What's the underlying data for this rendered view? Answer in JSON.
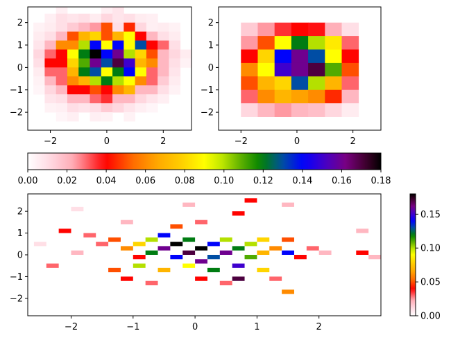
{
  "chart_data": [
    {
      "type": "heatmap",
      "title": "",
      "xlabel": "",
      "ylabel": "",
      "xlim": [
        -2.8,
        3.0
      ],
      "ylim": [
        -2.8,
        2.7
      ],
      "x_ticks": [
        -2,
        0,
        2
      ],
      "y_ticks": [
        -2,
        -1,
        0,
        1,
        2
      ],
      "x_edges": [
        -2.6,
        -2.2,
        -1.8,
        -1.4,
        -1.0,
        -0.6,
        -0.2,
        0.2,
        0.6,
        1.0,
        1.4,
        1.8,
        2.2,
        2.6,
        3.0
      ],
      "y_edges": [
        -2.8,
        -2.4,
        -2.0,
        -1.6,
        -1.2,
        -0.8,
        -0.4,
        0.0,
        0.4,
        0.8,
        1.2,
        1.6,
        2.0,
        2.4,
        2.8
      ],
      "colormap": "gist_ncar_r",
      "values_rows_top_to_bottom": [
        [
          0,
          0,
          0.005,
          0,
          0,
          0,
          0.005,
          0.008,
          0,
          0,
          0,
          0,
          0,
          0
        ],
        [
          0,
          0.005,
          0.01,
          0.008,
          0.01,
          0.006,
          0.012,
          0.008,
          0.01,
          0.006,
          0.005,
          0,
          0,
          0
        ],
        [
          0.004,
          0.006,
          0.01,
          0.015,
          0.02,
          0.025,
          0.05,
          0.01,
          0.045,
          0.012,
          0.005,
          0.006,
          0.004,
          0
        ],
        [
          0.006,
          0.01,
          0.02,
          0.05,
          0.07,
          0.08,
          0.05,
          0.07,
          0.09,
          0.04,
          0.02,
          0.01,
          0.006,
          0
        ],
        [
          0.008,
          0.02,
          0.06,
          0.06,
          0.1,
          0.14,
          0.09,
          0.14,
          0.09,
          0.13,
          0.04,
          0.03,
          0.01,
          0
        ],
        [
          0.012,
          0.03,
          0.04,
          0.09,
          0.12,
          0.18,
          0.14,
          0.16,
          0.1,
          0.08,
          0.05,
          0.02,
          0.012,
          0.006
        ],
        [
          0.01,
          0.04,
          0.04,
          0.08,
          0.11,
          0.16,
          0.13,
          0.17,
          0.15,
          0.07,
          0.06,
          0.02,
          0.01,
          0.004
        ],
        [
          0.006,
          0.03,
          0.03,
          0.07,
          0.12,
          0.13,
          0.09,
          0.12,
          0.14,
          0.09,
          0.03,
          0.02,
          0.008,
          0
        ],
        [
          0.004,
          0.02,
          0.03,
          0.06,
          0.07,
          0.1,
          0.12,
          0.1,
          0.09,
          0.06,
          0.03,
          0.015,
          0.006,
          0
        ],
        [
          0.003,
          0.012,
          0.02,
          0.04,
          0.04,
          0.05,
          0.04,
          0.06,
          0.07,
          0.02,
          0.02,
          0.01,
          0.004,
          0
        ],
        [
          0,
          0.008,
          0.01,
          0.02,
          0.02,
          0.03,
          0.035,
          0.02,
          0.02,
          0.012,
          0.008,
          0.005,
          0,
          0
        ],
        [
          0,
          0.004,
          0.005,
          0.01,
          0.008,
          0.01,
          0.015,
          0.012,
          0.008,
          0.005,
          0.003,
          0,
          0,
          0
        ],
        [
          0,
          0,
          0.003,
          0.005,
          0,
          0.005,
          0.004,
          0,
          0.004,
          0,
          0,
          0,
          0,
          0
        ],
        [
          0,
          0,
          0,
          0,
          0,
          0,
          0,
          0,
          0,
          0,
          0,
          0,
          0,
          0
        ]
      ]
    },
    {
      "type": "heatmap",
      "title": "",
      "xlabel": "",
      "ylabel": "",
      "xlim": [
        -2.8,
        3.0
      ],
      "ylim": [
        -2.8,
        2.7
      ],
      "x_ticks": [
        -2,
        0,
        2
      ],
      "y_ticks": [
        -2,
        -1,
        0,
        1,
        2
      ],
      "x_edges": [
        -2.0,
        -1.4,
        -0.8,
        -0.2,
        0.4,
        1.0,
        1.6,
        2.2
      ],
      "y_edges": [
        -2.2,
        -1.6,
        -1.0,
        -0.4,
        0.2,
        0.8,
        1.4,
        2.0,
        2.6
      ],
      "colormap": "gist_ncar_r",
      "values_rows_top_to_bottom": [
        [
          0,
          0,
          0,
          0,
          0,
          0,
          0
        ],
        [
          0.015,
          0.025,
          0.035,
          0.04,
          0.038,
          0.022,
          0.01
        ],
        [
          0.025,
          0.05,
          0.09,
          0.12,
          0.1,
          0.085,
          0.03
        ],
        [
          0.04,
          0.08,
          0.14,
          0.16,
          0.13,
          0.09,
          0.04
        ],
        [
          0.06,
          0.09,
          0.15,
          0.16,
          0.17,
          0.11,
          0.05
        ],
        [
          0.05,
          0.07,
          0.08,
          0.13,
          0.1,
          0.07,
          0.03
        ],
        [
          0.03,
          0.06,
          0.07,
          0.065,
          0.06,
          0.045,
          0.02
        ],
        [
          0.012,
          0.02,
          0.025,
          0.02,
          0.018,
          0.012,
          0.006
        ]
      ]
    },
    {
      "type": "heatmap",
      "title": "",
      "xlabel": "",
      "ylabel": "",
      "xlim": [
        -2.7,
        3.0
      ],
      "ylim": [
        -2.8,
        2.8
      ],
      "x_ticks": [
        -2,
        -1,
        0,
        1,
        2
      ],
      "y_ticks": [
        -2,
        -1,
        0,
        1,
        2
      ],
      "x_edges": [
        -2.6,
        -2.4,
        -2.2,
        -2.0,
        -1.8,
        -1.6,
        -1.4,
        -1.2,
        -1.0,
        -0.8,
        -0.6,
        -0.4,
        -0.2,
        0.0,
        0.2,
        0.4,
        0.6,
        0.8,
        1.0,
        1.2,
        1.4,
        1.6,
        1.8,
        2.0,
        2.2,
        2.4,
        2.6,
        2.8,
        3.0
      ],
      "y_edges": [
        -2.8,
        -2.6,
        -2.4,
        -2.2,
        -2.0,
        -1.8,
        -1.6,
        -1.4,
        -1.2,
        -1.0,
        -0.8,
        -0.6,
        -0.4,
        -0.2,
        0.0,
        0.2,
        0.4,
        0.6,
        0.8,
        1.0,
        1.2,
        1.4,
        1.6,
        1.8,
        2.0,
        2.2,
        2.4,
        2.6,
        2.8
      ],
      "colormap": "gist_ncar_r",
      "cells": [
        [
          -2.2,
          1.0,
          0.04
        ],
        [
          -1.8,
          0.8,
          0.03
        ],
        [
          -1.6,
          0.4,
          0.03
        ],
        [
          -2.0,
          0.0,
          0.02
        ],
        [
          -2.4,
          -0.6,
          0.03
        ],
        [
          -1.4,
          0.6,
          0.05
        ],
        [
          -1.2,
          0.2,
          0.06
        ],
        [
          -1.0,
          0.4,
          0.08
        ],
        [
          -1.0,
          -0.2,
          0.04
        ],
        [
          -0.8,
          0.0,
          0.12
        ],
        [
          -0.8,
          0.6,
          0.1
        ],
        [
          -0.6,
          0.8,
          0.14
        ],
        [
          -0.6,
          0.2,
          0.16
        ],
        [
          -0.4,
          0.4,
          0.18
        ],
        [
          -0.4,
          -0.2,
          0.14
        ],
        [
          -0.2,
          0.0,
          0.17
        ],
        [
          -0.2,
          0.6,
          0.12
        ],
        [
          0.0,
          0.2,
          0.18
        ],
        [
          0.0,
          -0.4,
          0.16
        ],
        [
          0.2,
          0.4,
          0.14
        ],
        [
          0.2,
          -0.2,
          0.13
        ],
        [
          0.4,
          0.6,
          0.1
        ],
        [
          0.4,
          0.0,
          0.16
        ],
        [
          0.6,
          0.2,
          0.12
        ],
        [
          0.6,
          -0.6,
          0.15
        ],
        [
          0.8,
          0.4,
          0.1
        ],
        [
          0.8,
          -0.2,
          0.11
        ],
        [
          1.0,
          0.6,
          0.08
        ],
        [
          1.0,
          0.0,
          0.07
        ],
        [
          1.2,
          0.2,
          0.06
        ],
        [
          1.4,
          0.0,
          0.14
        ],
        [
          1.4,
          0.6,
          0.05
        ],
        [
          1.6,
          -0.2,
          0.04
        ],
        [
          1.8,
          0.2,
          0.03
        ],
        [
          2.0,
          0.0,
          0.02
        ],
        [
          2.6,
          0.0,
          0.04
        ],
        [
          2.8,
          -0.2,
          0.02
        ],
        [
          -1.0,
          -0.6,
          0.1
        ],
        [
          -0.6,
          -0.8,
          0.07
        ],
        [
          -0.2,
          -0.6,
          0.09
        ],
        [
          0.2,
          -0.8,
          0.12
        ],
        [
          0.6,
          -1.2,
          0.17
        ],
        [
          1.0,
          -0.8,
          0.08
        ],
        [
          -1.4,
          -0.8,
          0.05
        ],
        [
          -1.2,
          -1.2,
          0.04
        ],
        [
          -0.8,
          -1.4,
          0.03
        ],
        [
          0.0,
          -1.2,
          0.04
        ],
        [
          0.4,
          -1.4,
          0.03
        ],
        [
          1.2,
          -1.2,
          0.03
        ],
        [
          1.4,
          -1.8,
          0.06
        ],
        [
          -0.4,
          1.2,
          0.05
        ],
        [
          0.0,
          1.4,
          0.03
        ],
        [
          0.6,
          1.8,
          0.04
        ],
        [
          -1.2,
          1.4,
          0.02
        ],
        [
          0.8,
          2.4,
          0.04
        ],
        [
          -0.2,
          2.2,
          0.02
        ],
        [
          1.4,
          2.2,
          0.02
        ],
        [
          -2.0,
          2.0,
          0.01
        ],
        [
          2.6,
          1.0,
          0.02
        ],
        [
          -2.6,
          0.4,
          0.01
        ]
      ]
    },
    {
      "type": "colorbar",
      "orientation": "horizontal",
      "colormap": "gist_ncar_r",
      "range": [
        0,
        0.18
      ],
      "tick_values": [
        0.0,
        0.02,
        0.04,
        0.06,
        0.08,
        0.1,
        0.12,
        0.14,
        0.16,
        0.18
      ],
      "tick_labels": [
        "0.00",
        "0.02",
        "0.04",
        "0.06",
        "0.08",
        "0.10",
        "0.12",
        "0.14",
        "0.16",
        "0.18"
      ]
    },
    {
      "type": "colorbar",
      "orientation": "vertical",
      "colormap": "gist_ncar_r",
      "range": [
        0,
        0.18
      ],
      "tick_values": [
        0.0,
        0.05,
        0.1,
        0.15
      ],
      "tick_labels": [
        "0.00",
        "0.05",
        "0.10",
        "0.15"
      ]
    }
  ]
}
